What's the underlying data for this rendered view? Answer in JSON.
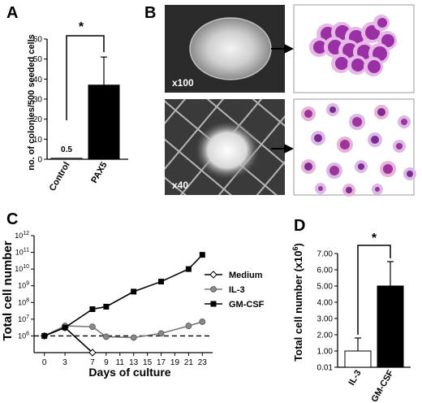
{
  "panels": {
    "A": {
      "letter": "A"
    },
    "B": {
      "letter": "B",
      "top_magnification": "x100",
      "bottom_magnification": "x40"
    },
    "C": {
      "letter": "C"
    },
    "D": {
      "letter": "D"
    }
  },
  "chart_data": [
    {
      "panel": "A",
      "type": "bar",
      "categories": [
        "Control",
        "PAX5"
      ],
      "values": [
        0.5,
        37
      ],
      "error_upper": [
        null,
        51
      ],
      "value_labels": [
        "0.5",
        ""
      ],
      "ylabel": "no. of colonies/500 seeded cells",
      "xlabel": "",
      "ylim": [
        0,
        60
      ],
      "yticks": [
        0,
        10,
        20,
        30,
        40,
        50,
        60
      ],
      "significance": "*",
      "colors": [
        "#ffffff",
        "#000000"
      ]
    },
    {
      "panel": "C",
      "type": "line",
      "x": [
        0,
        3,
        7,
        9,
        11,
        13,
        15,
        17,
        19,
        21,
        23
      ],
      "xticks": [
        0,
        3,
        7,
        9,
        11,
        13,
        15,
        17,
        19,
        21,
        23
      ],
      "xlabel": "Days of culture",
      "ylabel": "Total cell number",
      "yscale": "log",
      "ylim_exponent": [
        5,
        12
      ],
      "ytick_base": "10",
      "ytick_exponents": [
        6,
        7,
        8,
        9,
        10,
        11,
        12
      ],
      "baseline_exponent": 6,
      "baseline_style": "dashed",
      "legend_position": "right",
      "series": [
        {
          "name": "Medium",
          "marker": "open-diamond",
          "x": [
            0,
            3,
            7
          ],
          "log10_y": [
            6.0,
            6.5,
            5.0
          ]
        },
        {
          "name": "IL-3",
          "marker": "grey-circle",
          "x": [
            0,
            3,
            7,
            9,
            13,
            17,
            21,
            23
          ],
          "log10_y": [
            6.0,
            6.6,
            6.55,
            5.95,
            5.9,
            6.15,
            6.6,
            6.85
          ]
        },
        {
          "name": "GM-CSF",
          "marker": "black-square",
          "x": [
            0,
            3,
            7,
            9,
            13,
            17,
            21,
            23
          ],
          "log10_y": [
            6.0,
            6.5,
            7.6,
            7.75,
            8.65,
            9.25,
            10.0,
            10.85
          ]
        }
      ]
    },
    {
      "panel": "D",
      "type": "bar",
      "categories": [
        "IL-3",
        "GM-CSF"
      ],
      "values": [
        1.0,
        5.0
      ],
      "error_upper": [
        1.8,
        6.5
      ],
      "ylabel": "Total cell number (x10",
      "ylabel_superscript": "6",
      "ylabel_suffix": ")",
      "xlabel": "",
      "ylim": [
        0.01,
        7.0
      ],
      "yticks": [
        "0.01",
        "1.00",
        "2.00",
        "3.00",
        "4.00",
        "5.00",
        "6.00",
        "7.00"
      ],
      "significance": "*",
      "colors": [
        "#ffffff",
        "#000000"
      ]
    }
  ]
}
